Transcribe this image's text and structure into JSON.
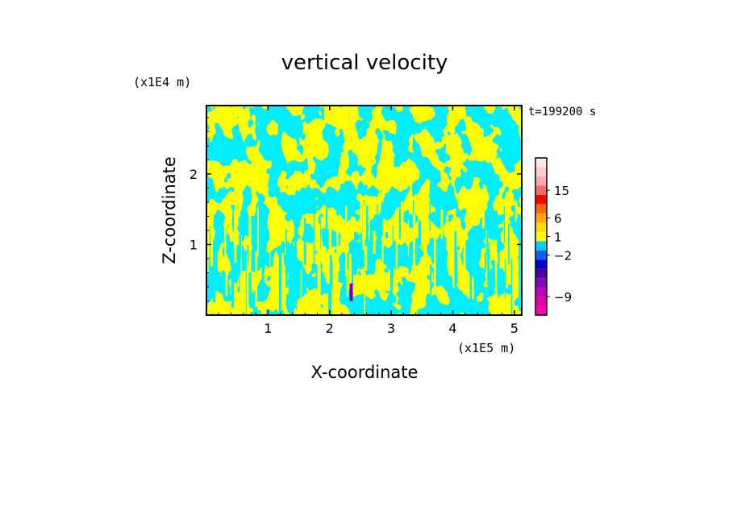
{
  "chart_data": {
    "type": "heatmap",
    "title": "vertical velocity",
    "xlabel": "X-coordinate",
    "ylabel": "Z-coordinate",
    "x_unit": "(x1E5 m)",
    "y_unit": "(x1E4 m)",
    "time_label": "t=199200 s",
    "xlim": [
      0,
      5.12
    ],
    "ylim": [
      0,
      2.97
    ],
    "x_ticks": [
      1,
      2,
      3,
      4,
      5
    ],
    "x_tick_labels": [
      "1",
      "2",
      "3",
      "4",
      "5"
    ],
    "y_ticks": [
      1,
      2
    ],
    "y_tick_labels": [
      "1",
      "2"
    ],
    "field_colors": {
      "positive": "#ffff00",
      "negative": "#00eeff",
      "strong_negative": "#6a00c8",
      "frame": "#000000"
    },
    "colorbar": {
      "colors": [
        "#ff00aa",
        "#dd00aa",
        "#bb00bb",
        "#8800bb",
        "#4400aa",
        "#0000cc",
        "#0066ff",
        "#00ccff",
        "#ffff00",
        "#ffdd00",
        "#ffaa00",
        "#ff6600",
        "#ff0000",
        "#ff6666",
        "#ffaaaa",
        "#ffcccc",
        "#ffe8e8"
      ],
      "labels": [
        {
          "text": "15",
          "value": 15
        },
        {
          "text": "6",
          "value": 6
        },
        {
          "text": "1",
          "value": 1
        },
        {
          "text": "−2",
          "value": -2
        },
        {
          "text": "−9",
          "value": -9
        }
      ]
    }
  }
}
